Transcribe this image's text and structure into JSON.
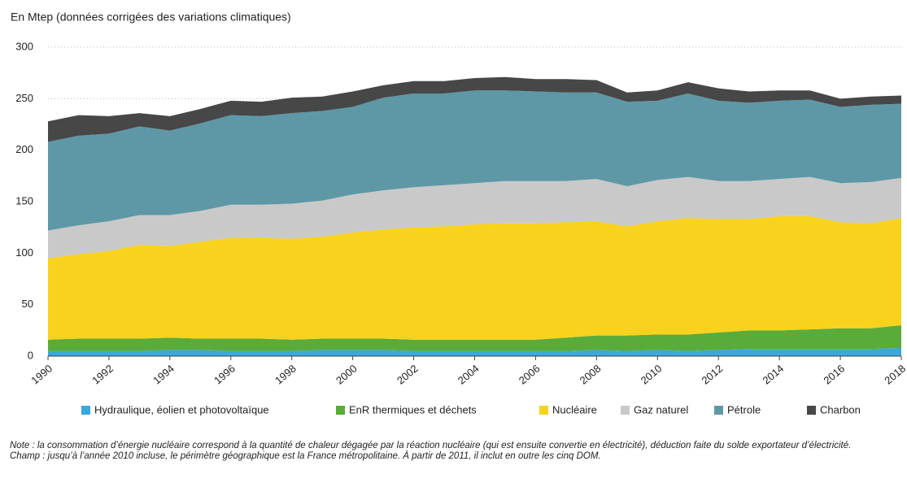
{
  "chart_data": {
    "type": "stacked_area",
    "subtitle": "En Mtep (données corrigées des variations climatiques)",
    "x": [
      1990,
      1991,
      1992,
      1993,
      1994,
      1995,
      1996,
      1997,
      1998,
      1999,
      2000,
      2001,
      2002,
      2003,
      2004,
      2005,
      2006,
      2007,
      2008,
      2009,
      2010,
      2011,
      2012,
      2013,
      2014,
      2015,
      2016,
      2017,
      2018
    ],
    "xlim": [
      1990,
      2018
    ],
    "xticks": [
      1990,
      1992,
      1994,
      1996,
      1998,
      2000,
      2002,
      2004,
      2006,
      2008,
      2010,
      2012,
      2014,
      2016,
      2018
    ],
    "ylim": [
      0,
      300
    ],
    "yticks": [
      0,
      50,
      100,
      150,
      200,
      250,
      300
    ],
    "grid": true,
    "legend": "bottom",
    "series": [
      {
        "name": "Hydraulique, éolien et photovoltaïque",
        "color": "#3aa8dc",
        "values": [
          5,
          5,
          5,
          5,
          6,
          6,
          5,
          5,
          5,
          6,
          6,
          6,
          5,
          5,
          5,
          5,
          5,
          5,
          6,
          5,
          6,
          5,
          6,
          7,
          7,
          7,
          7,
          7,
          8
        ]
      },
      {
        "name": "EnR thermiques et déchets",
        "color": "#5aab3a",
        "values": [
          11,
          12,
          12,
          12,
          12,
          11,
          12,
          12,
          11,
          11,
          11,
          11,
          11,
          11,
          11,
          11,
          11,
          13,
          14,
          15,
          15,
          16,
          17,
          18,
          18,
          19,
          20,
          20,
          22
        ]
      },
      {
        "name": "Nucléaire",
        "color": "#f8d21c",
        "values": [
          79,
          82,
          85,
          91,
          89,
          94,
          98,
          98,
          98,
          99,
          103,
          106,
          109,
          110,
          112,
          113,
          113,
          112,
          111,
          106,
          110,
          113,
          110,
          108,
          111,
          110,
          103,
          102,
          104
        ]
      },
      {
        "name": "Gaz naturel",
        "color": "#c9c9c9",
        "values": [
          27,
          28,
          29,
          29,
          30,
          30,
          32,
          32,
          34,
          35,
          37,
          38,
          39,
          40,
          40,
          41,
          41,
          40,
          41,
          39,
          40,
          40,
          37,
          37,
          36,
          38,
          38,
          40,
          39
        ]
      },
      {
        "name": "Pétrole",
        "color": "#5e98a6",
        "values": [
          86,
          87,
          85,
          86,
          82,
          85,
          87,
          86,
          88,
          87,
          85,
          90,
          91,
          89,
          90,
          88,
          87,
          86,
          84,
          82,
          77,
          81,
          78,
          76,
          76,
          75,
          74,
          75,
          72
        ]
      },
      {
        "name": "Charbon",
        "color": "#474747",
        "values": [
          20,
          20,
          17,
          13,
          14,
          14,
          14,
          14,
          15,
          14,
          15,
          12,
          12,
          12,
          12,
          13,
          12,
          13,
          12,
          9,
          10,
          11,
          12,
          11,
          10,
          9,
          8,
          8,
          8
        ]
      }
    ],
    "notes": [
      "Note : la consommation d’énergie nucléaire correspond à la quantité de chaleur dégagée par la réaction nucléaire (qui est ensuite convertie en électricité), déduction faite du solde exportateur d’électricité.",
      "Champ : jusqu’à l’année 2010 incluse, le périmètre géographique est la France métropolitaine. À partir de 2011, il inclut en outre les cinq DOM."
    ]
  }
}
